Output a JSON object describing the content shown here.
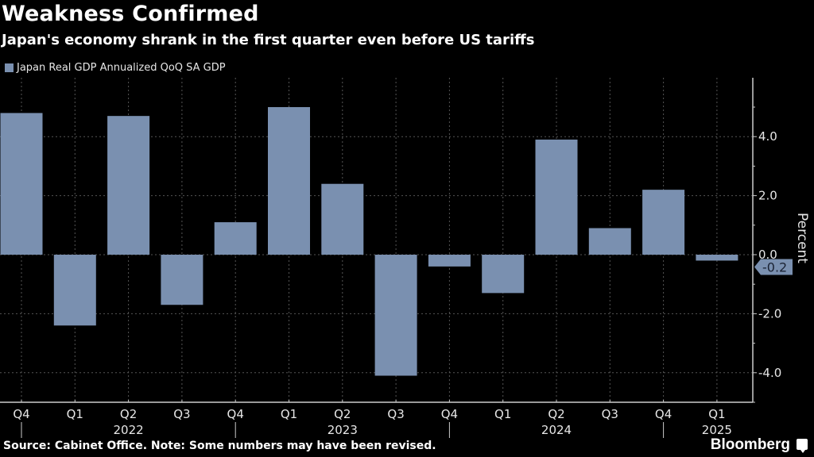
{
  "header": {
    "title": "Weakness Confirmed",
    "subtitle": "Japan's economy shrank in the first quarter even before US tariffs"
  },
  "footer": {
    "source": "Source: Cabinet Office. Note: Some numbers may have been revised.",
    "brand": "Bloomberg",
    "brand_icon": "chart-bubble-icon"
  },
  "colors": {
    "background": "#000000",
    "bar": "#7a90b0",
    "grid": "#555555",
    "axis": "#cccccc"
  },
  "chart_data": {
    "type": "bar",
    "title": "Weakness Confirmed",
    "subtitle": "Japan's economy shrank in the first quarter even before US tariffs",
    "legend": [
      "Japan Real GDP Annualized QoQ SA GDP"
    ],
    "legend_position": "top-left",
    "xlabel": "",
    "ylabel": "Percent",
    "ylim": [
      -5.0,
      5.8
    ],
    "yticks": [
      -4.0,
      -2.0,
      0.0,
      2.0,
      4.0
    ],
    "ytick_labels": [
      "-4.0",
      "-2.0",
      "0.0",
      "2.0",
      "4.0"
    ],
    "y_axis_side": "right",
    "grid": true,
    "categories": [
      "Q4 2021",
      "Q1 2022",
      "Q2 2022",
      "Q3 2022",
      "Q4 2022",
      "Q1 2023",
      "Q2 2023",
      "Q3 2023",
      "Q4 2023",
      "Q1 2024",
      "Q2 2024",
      "Q3 2024",
      "Q4 2024",
      "Q1 2025"
    ],
    "xtick_labels": [
      "Q4",
      "Q1",
      "Q2",
      "Q3",
      "Q4",
      "Q1",
      "Q2",
      "Q3",
      "Q4",
      "Q1",
      "Q2",
      "Q3",
      "Q4",
      "Q1"
    ],
    "year_labels": [
      {
        "label": "2022",
        "index": 2
      },
      {
        "label": "2023",
        "index": 6
      },
      {
        "label": "2024",
        "index": 10
      },
      {
        "label": "2025",
        "index": 13
      }
    ],
    "year_separators_after_index": [
      0,
      4,
      8,
      12
    ],
    "series": [
      {
        "name": "Japan Real GDP Annualized QoQ SA GDP",
        "values": [
          4.8,
          -2.4,
          4.7,
          -1.7,
          1.1,
          5.0,
          2.4,
          -4.1,
          -0.4,
          -1.3,
          3.9,
          0.9,
          2.2,
          -0.2
        ]
      }
    ],
    "last_value_label": "-0.2"
  }
}
